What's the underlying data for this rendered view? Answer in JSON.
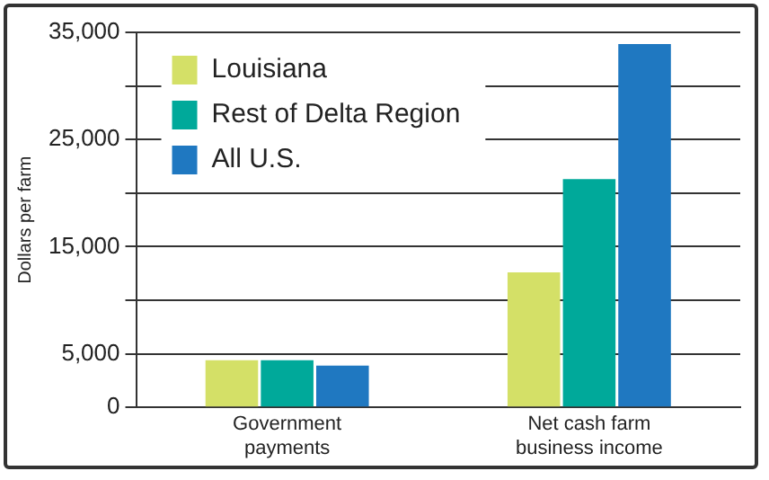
{
  "chart_data": {
    "type": "bar",
    "ylabel": "Dollars per farm",
    "categories": [
      "Government payments",
      "Net cash farm business income"
    ],
    "series": [
      {
        "name": "Louisiana",
        "color": "#d4e067",
        "values": [
          4400,
          12600
        ]
      },
      {
        "name": "Rest of Delta Region",
        "color": "#00a99a",
        "values": [
          4400,
          21300
        ]
      },
      {
        "name": "All U.S.",
        "color": "#1f78c1",
        "values": [
          3900,
          33900
        ]
      }
    ],
    "ylim": [
      0,
      35000
    ],
    "yticks": [
      0,
      {
        "value": 5000,
        "label": "5,000"
      },
      {
        "value": 10000,
        "label": null
      },
      {
        "value": 15000,
        "label": "15,000"
      },
      {
        "value": 20000,
        "label": null
      },
      {
        "value": 25000,
        "label": "25,000"
      },
      {
        "value": 30000,
        "label": null
      },
      {
        "value": 35000,
        "label": "35,000"
      }
    ],
    "grid": "y",
    "legend": "top left"
  }
}
